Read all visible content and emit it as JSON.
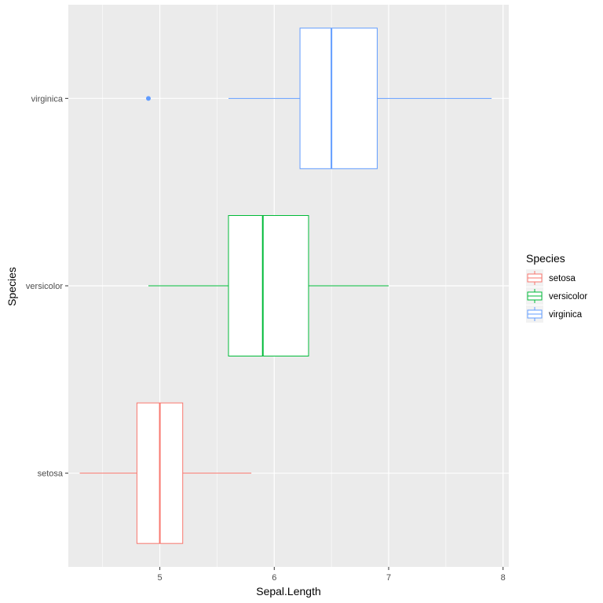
{
  "chart_data": {
    "type": "boxplot",
    "orientation": "horizontal",
    "xlabel": "Sepal.Length",
    "ylabel": "Species",
    "xlim": [
      4.2,
      8.05
    ],
    "x_ticks": [
      "5",
      "6",
      "7",
      "8"
    ],
    "categories": [
      "setosa",
      "versicolor",
      "virginica"
    ],
    "grid": true,
    "background_color": "#ebebeb",
    "legend_position": "right",
    "legend_title": "Species",
    "series": [
      {
        "name": "setosa",
        "color": "#F8766D",
        "min": 4.3,
        "q1": 4.8,
        "median": 5.0,
        "q3": 5.2,
        "max": 5.8,
        "outliers": []
      },
      {
        "name": "versicolor",
        "color": "#00BA38",
        "min": 4.9,
        "q1": 5.6,
        "median": 5.9,
        "q3": 6.3,
        "max": 7.0,
        "outliers": []
      },
      {
        "name": "virginica",
        "color": "#619CFF",
        "min": 5.6,
        "q1": 6.225,
        "median": 6.5,
        "q3": 6.9,
        "max": 7.9,
        "outliers": [
          4.9
        ]
      }
    ]
  }
}
